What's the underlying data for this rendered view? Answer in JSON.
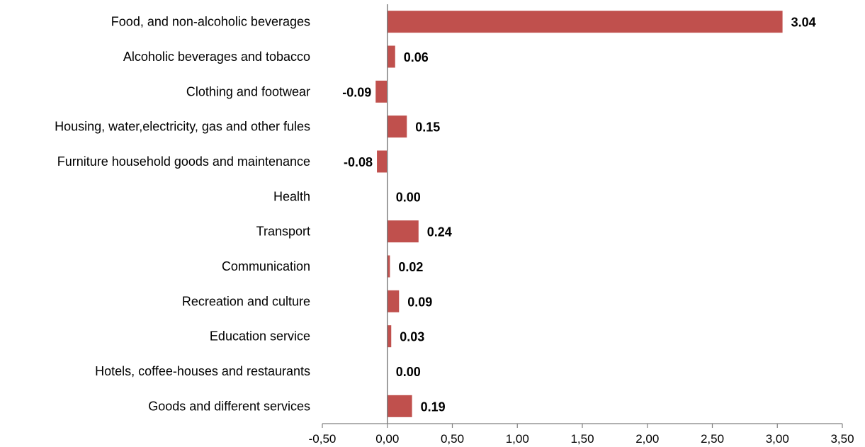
{
  "chart_data": {
    "type": "bar",
    "orientation": "horizontal",
    "categories": [
      "Food, and non-alcoholic beverages",
      "Alcoholic beverages and tobacco",
      "Clothing and footwear",
      "Housing, water,electricity, gas and other fules",
      "Furniture  household goods and maintenance",
      "Health",
      "Transport",
      "Communication",
      "Recreation  and culture",
      "Education service",
      "Hotels, coffee-houses and restaurants",
      "Goods and different services"
    ],
    "values": [
      3.04,
      0.06,
      -0.09,
      0.15,
      -0.08,
      0.0,
      0.24,
      0.02,
      0.09,
      0.03,
      0.0,
      0.19
    ],
    "value_labels": [
      "3.04",
      "0.06",
      "-0.09",
      "0.15",
      "-0.08",
      "0.00",
      "0.24",
      "0.02",
      "0.09",
      "0.03",
      "0.00",
      "0.19"
    ],
    "x_ticks": [
      "-0,50",
      "0,00",
      "0,50",
      "1,00",
      "1,50",
      "2,00",
      "2,50",
      "3,00",
      "3,50"
    ],
    "xlim": [
      -0.5,
      3.5
    ],
    "grid": false,
    "legend": "none",
    "title": "",
    "xlabel": "",
    "ylabel": "",
    "colors": {
      "bar": "#c0504d",
      "axis": "#808080",
      "text": "#000000"
    }
  }
}
